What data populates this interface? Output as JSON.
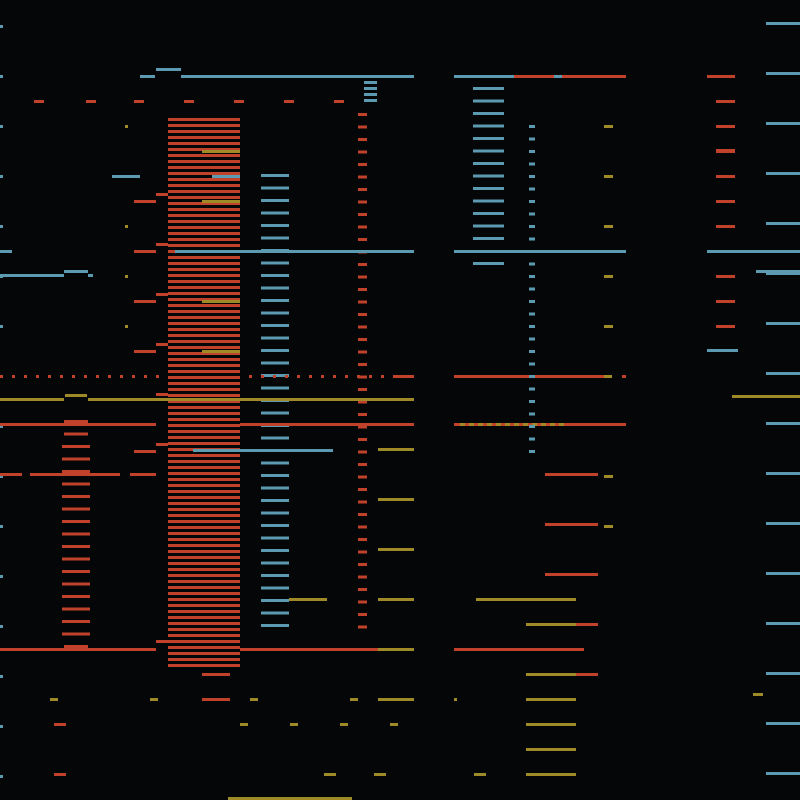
{
  "title": "",
  "palette": {
    "background": "#050608",
    "blue": "#5b9ab0",
    "red": "#c0422a",
    "gold": "#a08a28"
  },
  "description_of_content": ""
}
